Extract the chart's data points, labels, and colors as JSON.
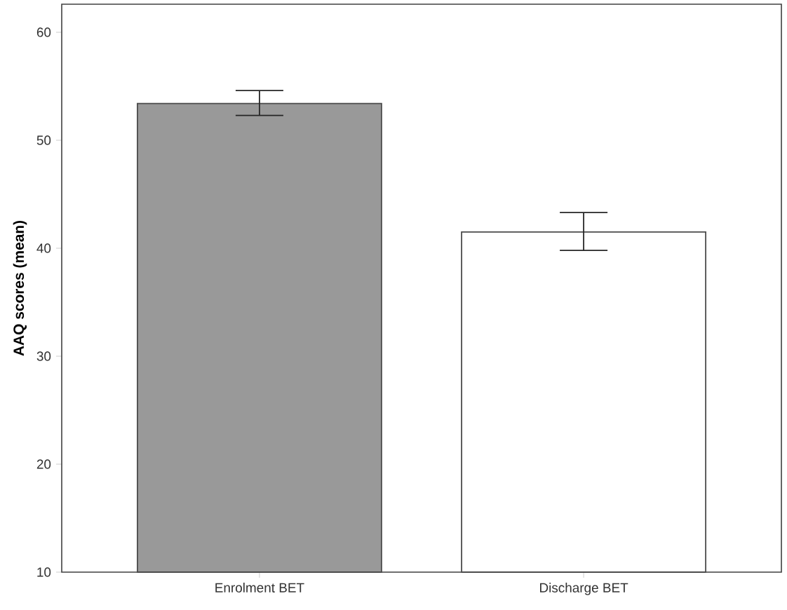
{
  "chart_data": {
    "type": "bar",
    "ylabel": "AAQ scores (mean)",
    "categories": [
      "Enrolment BET",
      "Discharge BET"
    ],
    "values": [
      53.4,
      41.5
    ],
    "errors": [
      [
        52.3,
        54.6
      ],
      [
        39.8,
        43.3
      ]
    ],
    "colors": [
      "#999999",
      "#ffffff"
    ],
    "ylim": [
      10,
      62.6
    ],
    "yticks": [
      10,
      20,
      30,
      40,
      50,
      60
    ],
    "grid": false
  }
}
